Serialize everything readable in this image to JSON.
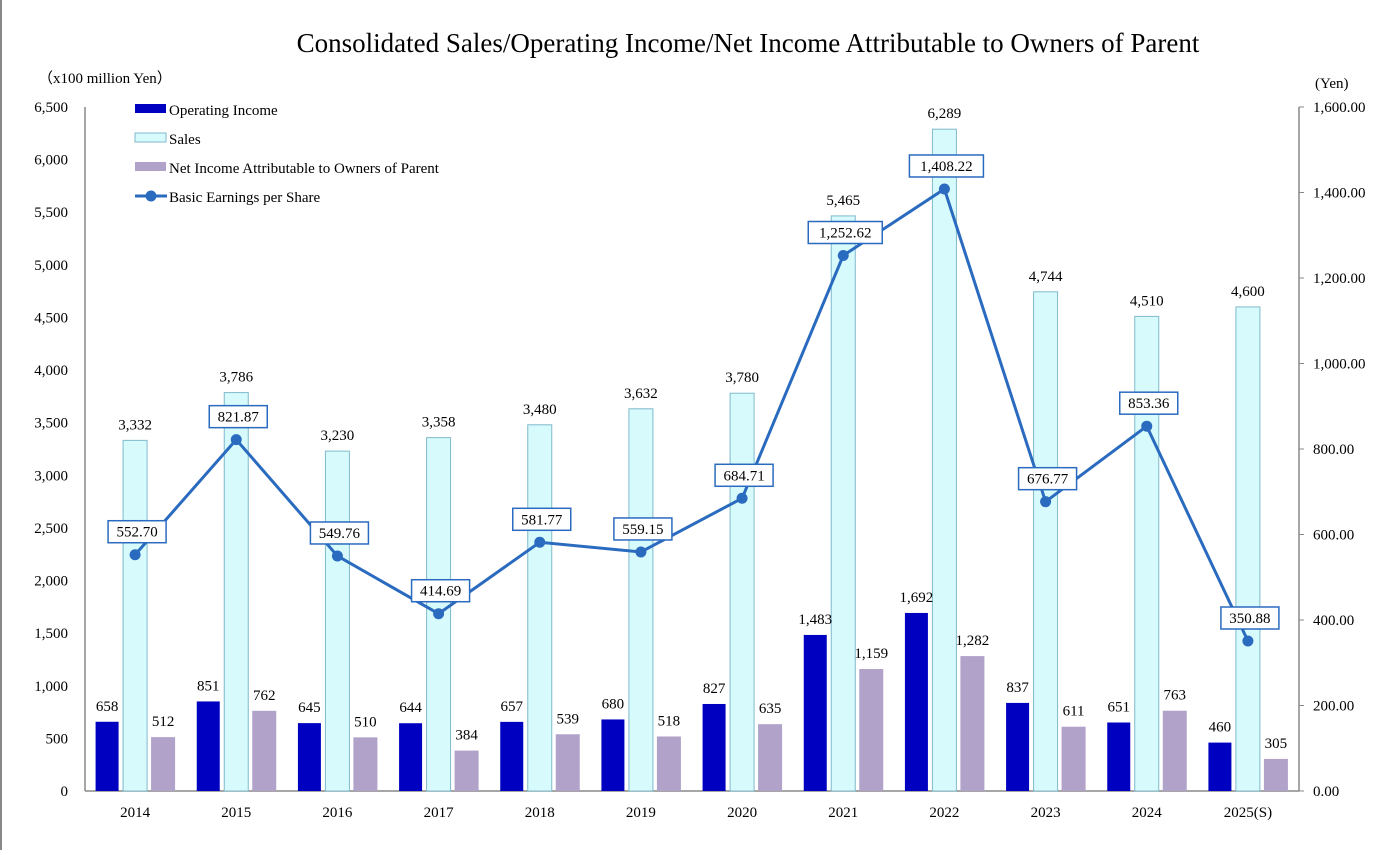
{
  "chart_data": {
    "type": "bar",
    "title": "Consolidated Sales/Operating Income/Net Income Attributable to Owners of Parent",
    "ylabel_left": "（x100 million Yen）",
    "ylabel_right": "(Yen)",
    "categories": [
      "2014",
      "2015",
      "2016",
      "2017",
      "2018",
      "2019",
      "2020",
      "2021",
      "2022",
      "2023",
      "2024",
      "2025(S)"
    ],
    "ylim_left": [
      0,
      6500
    ],
    "yticks_left": [
      "0",
      "500",
      "1,000",
      "1,500",
      "2,000",
      "2,500",
      "3,000",
      "3,500",
      "4,000",
      "4,500",
      "5,000",
      "5,500",
      "6,000",
      "6,500"
    ],
    "ylim_right": [
      0,
      1600
    ],
    "yticks_right": [
      "0.00",
      "200.00",
      "400.00",
      "600.00",
      "800.00",
      "1,000.00",
      "1,200.00",
      "1,400.00",
      "1,600.00"
    ],
    "grid": false,
    "legend_placement": "top-left",
    "series": [
      {
        "name": "Operating Income",
        "type": "bar",
        "axis": "left",
        "color": "#0000C0",
        "values": [
          658,
          851,
          645,
          644,
          657,
          680,
          827,
          1483,
          1692,
          837,
          651,
          460
        ],
        "labels": [
          "658",
          "851",
          "645",
          "644",
          "657",
          "680",
          "827",
          "1,483",
          "1,692",
          "837",
          "651",
          "460"
        ]
      },
      {
        "name": "Sales",
        "type": "bar",
        "axis": "left",
        "color": "#D7FAFC",
        "border": "#7FBACB",
        "values": [
          3332,
          3786,
          3230,
          3358,
          3480,
          3632,
          3780,
          5465,
          6289,
          4744,
          4510,
          4600
        ],
        "labels": [
          "3,332",
          "3,786",
          "3,230",
          "3,358",
          "3,480",
          "3,632",
          "3,780",
          "5,465",
          "6,289",
          "4,744",
          "4,510",
          "4,600"
        ]
      },
      {
        "name": "Net Income Attributable to Owners of Parent",
        "type": "bar",
        "axis": "left",
        "color": "#B0A2C8",
        "values": [
          512,
          762,
          510,
          384,
          539,
          518,
          635,
          1159,
          1282,
          611,
          763,
          305
        ],
        "labels": [
          "512",
          "762",
          "510",
          "384",
          "539",
          "518",
          "635",
          "1,159",
          "1,282",
          "611",
          "763",
          "305"
        ]
      },
      {
        "name": "Basic Earnings per Share",
        "type": "line",
        "axis": "right",
        "color": "#2A6BBF",
        "values": [
          552.7,
          821.87,
          549.76,
          414.69,
          581.77,
          559.15,
          684.71,
          1252.62,
          1408.22,
          676.77,
          853.36,
          350.88
        ],
        "labels": [
          "552.70",
          "821.87",
          "549.76",
          "414.69",
          "581.77",
          "559.15",
          "684.71",
          "1,252.62",
          "1,408.22",
          "676.77",
          "853.36",
          "350.88"
        ]
      }
    ]
  }
}
